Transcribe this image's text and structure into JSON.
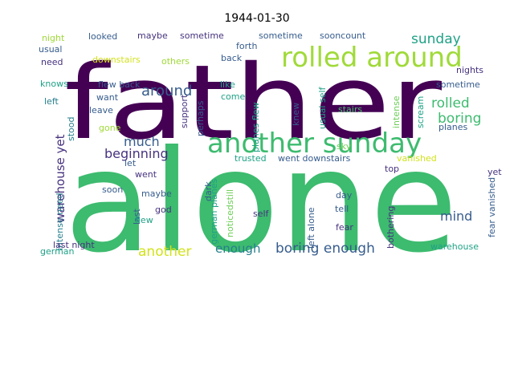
{
  "chart_data": {
    "type": "wordcloud",
    "title": "1944-01-30",
    "words": [
      {
        "text": "alone",
        "color": "#3dbb6f"
      },
      {
        "text": "father",
        "color": "#440154"
      },
      {
        "text": "rolled around",
        "color": "#a0da39"
      },
      {
        "text": "another sunday",
        "color": "#3dbb6f"
      },
      {
        "text": "sunday",
        "color": "#1fa187"
      },
      {
        "text": "rolled",
        "color": "#3dbb6f"
      },
      {
        "text": "boring",
        "color": "#3dbb6f"
      },
      {
        "text": "around",
        "color": "#365c8d"
      },
      {
        "text": "much",
        "color": "#365c8d"
      },
      {
        "text": "beginning",
        "color": "#46327e"
      },
      {
        "text": "warehouse yet",
        "color": "#46327e"
      },
      {
        "text": "mind",
        "color": "#365c8d"
      },
      {
        "text": "another",
        "color": "#d2e21b"
      },
      {
        "text": "enough",
        "color": "#277f8e"
      },
      {
        "text": "boring enough",
        "color": "#365c8d"
      },
      {
        "text": "night",
        "color": "#a0da39"
      },
      {
        "text": "looked",
        "color": "#365c8d"
      },
      {
        "text": "maybe",
        "color": "#46327e"
      },
      {
        "text": "sometime",
        "color": "#46327e"
      },
      {
        "text": "forth",
        "color": "#365c8d"
      },
      {
        "text": "sometime",
        "color": "#365c8d"
      },
      {
        "text": "sooncount",
        "color": "#365c8d"
      },
      {
        "text": "usual",
        "color": "#365c8d"
      },
      {
        "text": "downstairs",
        "color": "#d2e21b"
      },
      {
        "text": "others",
        "color": "#a0da39"
      },
      {
        "text": "back",
        "color": "#365c8d"
      },
      {
        "text": "need",
        "color": "#46327e"
      },
      {
        "text": "nights",
        "color": "#46327e"
      },
      {
        "text": "knows",
        "color": "#1fa187"
      },
      {
        "text": "flew back",
        "color": "#365c8d"
      },
      {
        "text": "like",
        "color": "#1fa187"
      },
      {
        "text": "usual self",
        "color": "#1fa187"
      },
      {
        "text": "sometime",
        "color": "#365c8d"
      },
      {
        "text": "left",
        "color": "#277f8e"
      },
      {
        "text": "want",
        "color": "#365c8d"
      },
      {
        "text": "support",
        "color": "#46327e"
      },
      {
        "text": "come",
        "color": "#1fa187"
      },
      {
        "text": "knew",
        "color": "#365c8d"
      },
      {
        "text": "leave",
        "color": "#365c8d"
      },
      {
        "text": "perhaps",
        "color": "#365c8d"
      },
      {
        "text": "planes flew",
        "color": "#1fa187"
      },
      {
        "text": "stairs",
        "color": "#4ac16d"
      },
      {
        "text": "intense",
        "color": "#6ece58"
      },
      {
        "text": "scream",
        "color": "#1fa187"
      },
      {
        "text": "planes",
        "color": "#365c8d"
      },
      {
        "text": "stood",
        "color": "#277f8e"
      },
      {
        "text": "gone",
        "color": "#a0da39"
      },
      {
        "text": "sky",
        "color": "#6ece58"
      },
      {
        "text": "let",
        "color": "#365c8d"
      },
      {
        "text": "trusted",
        "color": "#1fa187"
      },
      {
        "text": "went downstairs",
        "color": "#365c8d"
      },
      {
        "text": "vanished",
        "color": "#d2e21b"
      },
      {
        "text": "went",
        "color": "#46327e"
      },
      {
        "text": "top",
        "color": "#46327e"
      },
      {
        "text": "yet",
        "color": "#46327e"
      },
      {
        "text": "fear vanished",
        "color": "#365c8d"
      },
      {
        "text": "soon",
        "color": "#365c8d"
      },
      {
        "text": "dark",
        "color": "#365c8d"
      },
      {
        "text": "last",
        "color": "#365c8d"
      },
      {
        "text": "german planes",
        "color": "#1fa187"
      },
      {
        "text": "noticedstill",
        "color": "#6ece58"
      },
      {
        "text": "left alone",
        "color": "#365c8d"
      },
      {
        "text": "day",
        "color": "#365c8d"
      },
      {
        "text": "intense need",
        "color": "#277f8e"
      },
      {
        "text": "maybe",
        "color": "#365c8d"
      },
      {
        "text": "god",
        "color": "#46327e"
      },
      {
        "text": "tell",
        "color": "#365c8d"
      },
      {
        "text": "bothering",
        "color": "#46327e"
      },
      {
        "text": "flew",
        "color": "#1fa187"
      },
      {
        "text": "self",
        "color": "#46327e"
      },
      {
        "text": "fear",
        "color": "#46327e"
      },
      {
        "text": "last night",
        "color": "#46327e"
      },
      {
        "text": "warehouse",
        "color": "#1fa187"
      },
      {
        "text": "german",
        "color": "#1fa187"
      }
    ]
  }
}
